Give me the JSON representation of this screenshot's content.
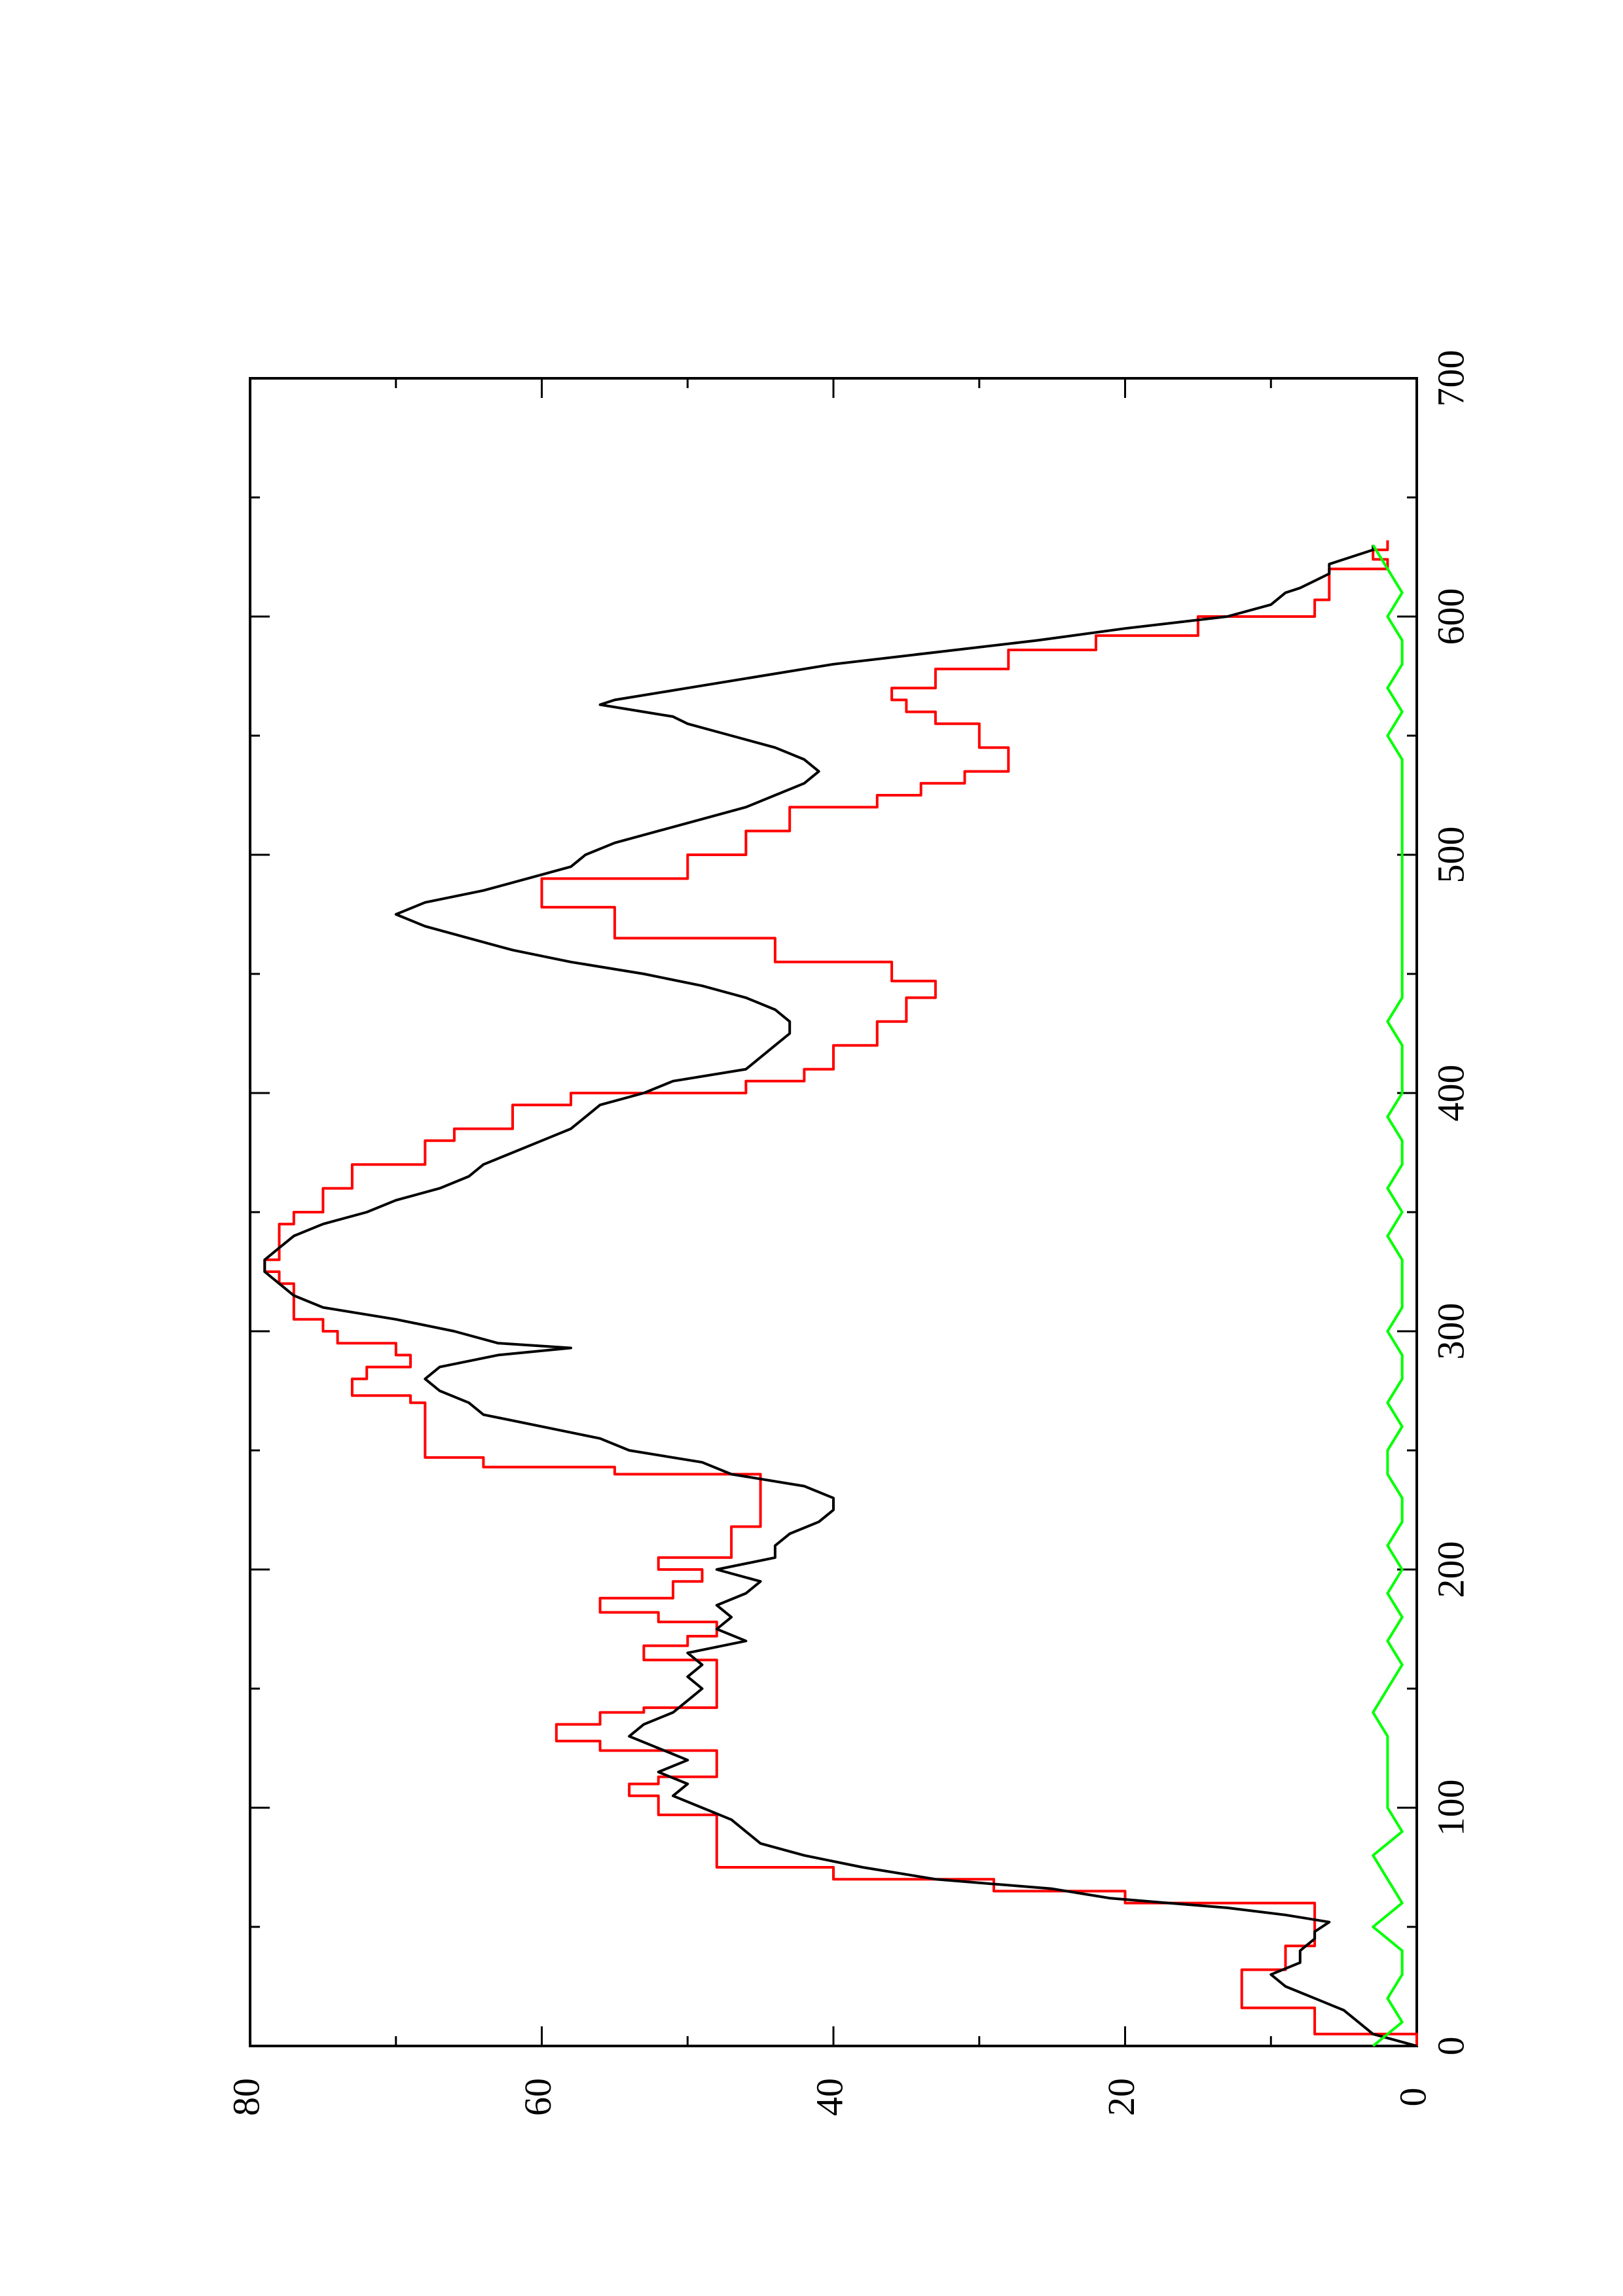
{
  "chart_data": {
    "type": "line",
    "orientation": "rotated-90-ccw",
    "title": "",
    "xlabel": "",
    "ylabel": "",
    "xlim": [
      0,
      700
    ],
    "ylim": [
      0,
      80
    ],
    "x_ticks": [
      "0",
      "100",
      "200",
      "300",
      "400",
      "500",
      "600",
      "700"
    ],
    "y_ticks": [
      "0",
      "20",
      "40",
      "60",
      "80"
    ],
    "grid": false,
    "legend": "none",
    "series": [
      {
        "color": "#ff0000",
        "style": "step",
        "points": [
          [
            0,
            0
          ],
          [
            5,
            7
          ],
          [
            10,
            7
          ],
          [
            15,
            7
          ],
          [
            16,
            12
          ],
          [
            30,
            12
          ],
          [
            32,
            9
          ],
          [
            40,
            9
          ],
          [
            42,
            7
          ],
          [
            50,
            7
          ],
          [
            55,
            7
          ],
          [
            60,
            20
          ],
          [
            65,
            29
          ],
          [
            70,
            40
          ],
          [
            75,
            48
          ],
          [
            95,
            48
          ],
          [
            97,
            52
          ],
          [
            105,
            54
          ],
          [
            110,
            52
          ],
          [
            113,
            48
          ],
          [
            120,
            48
          ],
          [
            124,
            56
          ],
          [
            128,
            59
          ],
          [
            135,
            56
          ],
          [
            140,
            53
          ],
          [
            142,
            48
          ],
          [
            158,
            48
          ],
          [
            162,
            53
          ],
          [
            168,
            50
          ],
          [
            172,
            48
          ],
          [
            178,
            52
          ],
          [
            182,
            56
          ],
          [
            188,
            51
          ],
          [
            195,
            49
          ],
          [
            200,
            52
          ],
          [
            205,
            47
          ],
          [
            210,
            47
          ],
          [
            218,
            45
          ],
          [
            230,
            45
          ],
          [
            240,
            55
          ],
          [
            243,
            64
          ],
          [
            247,
            68
          ],
          [
            260,
            68
          ],
          [
            270,
            69
          ],
          [
            273,
            73
          ],
          [
            280,
            72
          ],
          [
            285,
            69
          ],
          [
            290,
            70
          ],
          [
            295,
            74
          ],
          [
            300,
            75
          ],
          [
            305,
            77
          ],
          [
            315,
            77
          ],
          [
            320,
            78
          ],
          [
            325,
            79
          ],
          [
            330,
            78
          ],
          [
            345,
            77
          ],
          [
            350,
            75
          ],
          [
            360,
            73
          ],
          [
            370,
            68
          ],
          [
            380,
            66
          ],
          [
            385,
            62
          ],
          [
            395,
            58
          ],
          [
            400,
            46
          ],
          [
            405,
            42
          ],
          [
            410,
            40
          ],
          [
            420,
            37
          ],
          [
            430,
            35
          ],
          [
            440,
            33
          ],
          [
            447,
            36
          ],
          [
            455,
            44
          ],
          [
            465,
            55
          ],
          [
            478,
            60
          ],
          [
            490,
            50
          ],
          [
            500,
            46
          ],
          [
            510,
            43
          ],
          [
            520,
            37
          ],
          [
            525,
            34
          ],
          [
            530,
            31
          ],
          [
            535,
            28
          ],
          [
            545,
            30
          ],
          [
            555,
            33
          ],
          [
            560,
            35
          ],
          [
            565,
            36
          ],
          [
            570,
            33
          ],
          [
            578,
            28
          ],
          [
            586,
            22
          ],
          [
            592,
            15
          ],
          [
            600,
            7
          ],
          [
            607,
            6
          ],
          [
            613,
            6
          ],
          [
            620,
            2
          ],
          [
            624,
            3
          ],
          [
            628,
            2
          ],
          [
            632,
            2
          ]
        ]
      },
      {
        "color": "#000000",
        "style": "line",
        "points": [
          [
            0,
            0
          ],
          [
            5,
            3
          ],
          [
            10,
            4
          ],
          [
            15,
            5
          ],
          [
            20,
            7
          ],
          [
            25,
            9
          ],
          [
            30,
            10
          ],
          [
            35,
            8
          ],
          [
            40,
            8
          ],
          [
            45,
            7
          ],
          [
            48,
            7
          ],
          [
            52,
            6
          ],
          [
            55,
            9
          ],
          [
            58,
            13
          ],
          [
            62,
            21
          ],
          [
            66,
            25
          ],
          [
            70,
            33
          ],
          [
            75,
            38
          ],
          [
            80,
            42
          ],
          [
            85,
            45
          ],
          [
            90,
            46
          ],
          [
            95,
            47
          ],
          [
            100,
            49
          ],
          [
            105,
            51
          ],
          [
            110,
            50
          ],
          [
            115,
            52
          ],
          [
            120,
            50
          ],
          [
            125,
            52
          ],
          [
            130,
            54
          ],
          [
            135,
            53
          ],
          [
            140,
            51
          ],
          [
            145,
            50
          ],
          [
            150,
            49
          ],
          [
            155,
            50
          ],
          [
            160,
            49
          ],
          [
            165,
            50
          ],
          [
            170,
            46
          ],
          [
            175,
            48
          ],
          [
            180,
            47
          ],
          [
            185,
            48
          ],
          [
            190,
            46
          ],
          [
            195,
            45
          ],
          [
            200,
            48
          ],
          [
            205,
            44
          ],
          [
            210,
            44
          ],
          [
            215,
            43
          ],
          [
            220,
            41
          ],
          [
            225,
            40
          ],
          [
            230,
            40
          ],
          [
            235,
            42
          ],
          [
            240,
            47
          ],
          [
            245,
            49
          ],
          [
            250,
            54
          ],
          [
            255,
            56
          ],
          [
            260,
            60
          ],
          [
            265,
            64
          ],
          [
            270,
            65
          ],
          [
            275,
            67
          ],
          [
            280,
            68
          ],
          [
            285,
            67
          ],
          [
            290,
            63
          ],
          [
            293,
            58
          ],
          [
            295,
            63
          ],
          [
            300,
            66
          ],
          [
            305,
            70
          ],
          [
            310,
            75
          ],
          [
            315,
            77
          ],
          [
            320,
            78
          ],
          [
            325,
            79
          ],
          [
            330,
            79
          ],
          [
            335,
            78
          ],
          [
            340,
            77
          ],
          [
            345,
            75
          ],
          [
            350,
            72
          ],
          [
            355,
            70
          ],
          [
            360,
            67
          ],
          [
            365,
            65
          ],
          [
            370,
            64
          ],
          [
            375,
            62
          ],
          [
            380,
            60
          ],
          [
            385,
            58
          ],
          [
            390,
            57
          ],
          [
            395,
            56
          ],
          [
            400,
            53
          ],
          [
            405,
            51
          ],
          [
            410,
            46
          ],
          [
            415,
            45
          ],
          [
            420,
            44
          ],
          [
            425,
            43
          ],
          [
            430,
            43
          ],
          [
            435,
            44
          ],
          [
            440,
            46
          ],
          [
            445,
            49
          ],
          [
            450,
            53
          ],
          [
            455,
            58
          ],
          [
            460,
            62
          ],
          [
            465,
            65
          ],
          [
            470,
            68
          ],
          [
            475,
            70
          ],
          [
            480,
            68
          ],
          [
            485,
            64
          ],
          [
            490,
            61
          ],
          [
            495,
            58
          ],
          [
            500,
            57
          ],
          [
            505,
            55
          ],
          [
            510,
            52
          ],
          [
            515,
            49
          ],
          [
            520,
            46
          ],
          [
            525,
            44
          ],
          [
            530,
            42
          ],
          [
            535,
            41
          ],
          [
            540,
            42
          ],
          [
            545,
            44
          ],
          [
            550,
            47
          ],
          [
            555,
            50
          ],
          [
            558,
            51
          ],
          [
            560,
            53
          ],
          [
            563,
            56
          ],
          [
            565,
            55
          ],
          [
            570,
            50
          ],
          [
            575,
            45
          ],
          [
            580,
            40
          ],
          [
            585,
            33
          ],
          [
            590,
            26
          ],
          [
            595,
            20
          ],
          [
            600,
            13
          ],
          [
            605,
            10
          ],
          [
            610,
            9
          ],
          [
            612,
            8
          ],
          [
            615,
            7
          ],
          [
            618,
            6
          ],
          [
            620,
            6
          ],
          [
            622,
            6
          ],
          [
            624,
            5
          ],
          [
            626,
            4
          ],
          [
            628,
            3
          ],
          [
            630,
            3
          ]
        ]
      },
      {
        "color": "#00ff00",
        "style": "line",
        "points": [
          [
            0,
            3
          ],
          [
            10,
            1
          ],
          [
            20,
            2
          ],
          [
            30,
            1
          ],
          [
            40,
            1
          ],
          [
            50,
            3
          ],
          [
            60,
            1
          ],
          [
            70,
            2
          ],
          [
            80,
            3
          ],
          [
            90,
            1
          ],
          [
            100,
            2
          ],
          [
            110,
            2
          ],
          [
            120,
            2
          ],
          [
            130,
            2
          ],
          [
            140,
            3
          ],
          [
            150,
            2
          ],
          [
            160,
            1
          ],
          [
            170,
            2
          ],
          [
            180,
            1
          ],
          [
            190,
            2
          ],
          [
            200,
            1
          ],
          [
            210,
            2
          ],
          [
            220,
            1
          ],
          [
            230,
            1
          ],
          [
            240,
            2
          ],
          [
            250,
            2
          ],
          [
            260,
            1
          ],
          [
            270,
            2
          ],
          [
            280,
            1
          ],
          [
            290,
            1
          ],
          [
            300,
            2
          ],
          [
            310,
            1
          ],
          [
            320,
            1
          ],
          [
            330,
            1
          ],
          [
            340,
            2
          ],
          [
            350,
            1
          ],
          [
            360,
            2
          ],
          [
            370,
            1
          ],
          [
            380,
            1
          ],
          [
            390,
            2
          ],
          [
            400,
            1
          ],
          [
            410,
            1
          ],
          [
            420,
            1
          ],
          [
            430,
            2
          ],
          [
            440,
            1
          ],
          [
            450,
            1
          ],
          [
            460,
            1
          ],
          [
            470,
            1
          ],
          [
            480,
            1
          ],
          [
            490,
            1
          ],
          [
            500,
            1
          ],
          [
            510,
            1
          ],
          [
            520,
            1
          ],
          [
            530,
            1
          ],
          [
            540,
            1
          ],
          [
            550,
            2
          ],
          [
            560,
            1
          ],
          [
            570,
            2
          ],
          [
            580,
            1
          ],
          [
            590,
            1
          ],
          [
            600,
            2
          ],
          [
            610,
            1
          ],
          [
            620,
            2
          ],
          [
            630,
            3
          ]
        ]
      }
    ]
  }
}
